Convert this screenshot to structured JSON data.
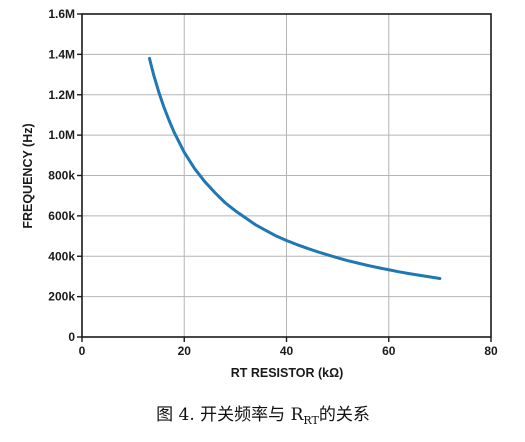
{
  "chart_data": {
    "type": "line",
    "xlabel": "RT RESISTOR (kΩ)",
    "ylabel": "FREQUENCY (Hz)",
    "xlim": [
      0,
      80
    ],
    "ylim": [
      0,
      1600000
    ],
    "x_ticks": [
      0,
      20,
      40,
      60,
      80
    ],
    "x_tick_labels": [
      "0",
      "20",
      "40",
      "60",
      "80"
    ],
    "y_ticks": [
      0,
      200000,
      400000,
      600000,
      800000,
      1000000,
      1200000,
      1400000,
      1600000
    ],
    "y_tick_labels": [
      "0",
      "200k",
      "400k",
      "600k",
      "800k",
      "1.0M",
      "1.2M",
      "1.4M",
      "1.6M"
    ],
    "grid": true,
    "series": [
      {
        "color": "#1f77b4",
        "points": [
          [
            13.2,
            1380000
          ],
          [
            14,
            1300000
          ],
          [
            15,
            1215000
          ],
          [
            16,
            1140000
          ],
          [
            17,
            1075000
          ],
          [
            18,
            1015000
          ],
          [
            19,
            965000
          ],
          [
            20,
            915000
          ],
          [
            22,
            835000
          ],
          [
            24,
            770000
          ],
          [
            26,
            715000
          ],
          [
            28,
            665000
          ],
          [
            30,
            625000
          ],
          [
            32,
            590000
          ],
          [
            34,
            555000
          ],
          [
            36,
            527000
          ],
          [
            38,
            500000
          ],
          [
            40,
            478000
          ],
          [
            42,
            458000
          ],
          [
            44,
            440000
          ],
          [
            46,
            423000
          ],
          [
            48,
            407000
          ],
          [
            50,
            392000
          ],
          [
            52,
            378000
          ],
          [
            54,
            366000
          ],
          [
            56,
            354000
          ],
          [
            58,
            343000
          ],
          [
            60,
            333000
          ],
          [
            62,
            323000
          ],
          [
            64,
            314000
          ],
          [
            66,
            306000
          ],
          [
            68,
            298000
          ],
          [
            70,
            290000
          ]
        ]
      }
    ]
  },
  "caption": {
    "prefix": "图 4. 开关频率与 R",
    "subscript": "RT",
    "suffix": "的关系"
  }
}
